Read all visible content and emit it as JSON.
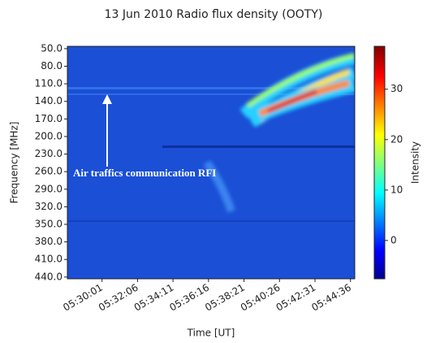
{
  "chart_data": {
    "type": "heatmap",
    "title": "13 Jun 2010 Radio flux density (OOTY)",
    "x_label": "Time [UT]",
    "y_label": "Frequency [MHz]",
    "colorbar_label": "Intensity",
    "annotation": "Air traffics communication RFI",
    "xlim": [
      "05:27:59",
      "05:44:51"
    ],
    "xticks": [
      "05:30:01",
      "05:32:06",
      "05:34:11",
      "05:36:16",
      "05:38:21",
      "05:40:26",
      "05:42:31",
      "05:44:36"
    ],
    "ylim": [
      46,
      443
    ],
    "yticks": [
      {
        "value": 50,
        "label": "50.0"
      },
      {
        "value": 80,
        "label": "80.0"
      },
      {
        "value": 110,
        "label": "110.0"
      },
      {
        "value": 140,
        "label": "140.0"
      },
      {
        "value": 170,
        "label": "170.0"
      },
      {
        "value": 200,
        "label": "200.0"
      },
      {
        "value": 230,
        "label": "230.0"
      },
      {
        "value": 260,
        "label": "260.0"
      },
      {
        "value": 290,
        "label": "290.0"
      },
      {
        "value": 320,
        "label": "320.0"
      },
      {
        "value": 350,
        "label": "350.0"
      },
      {
        "value": 380,
        "label": "380.0"
      },
      {
        "value": 410,
        "label": "410.0"
      },
      {
        "value": 440,
        "label": "440.0"
      }
    ],
    "clim": [
      -7.6,
      38.5
    ],
    "cticks": [
      0,
      10,
      20,
      30
    ],
    "colormap": "jet"
  }
}
